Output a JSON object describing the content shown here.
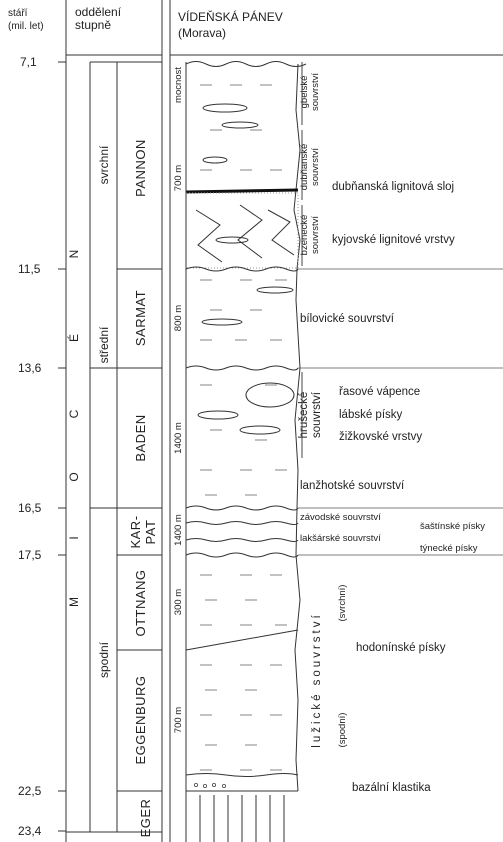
{
  "headers": {
    "age_line1": "stáří",
    "age_line2": "(mil. let)",
    "division_line1": "oddělení",
    "division_line2": "stupně",
    "basin_title": "VÍDEŇSKÁ PÁNEV",
    "basin_subtitle": "(Morava)"
  },
  "ages": [
    "7,1",
    "11,5",
    "13,6",
    "16,5",
    "17,5",
    "22,5",
    "23,4"
  ],
  "epoch_letters": [
    "N",
    "É",
    "C",
    "O",
    "I",
    "M"
  ],
  "subepochs": [
    "svrchní",
    "střední",
    "spodní"
  ],
  "stages": [
    "PANNON",
    "SARMAT",
    "BADEN",
    "KAR-",
    "PAT",
    "OTTNANG",
    "EGGENBURG",
    "EGER"
  ],
  "thicknesses": [
    "mocnost",
    "700 m",
    "800 m",
    "1400 m",
    "1400 m",
    "300 m",
    "700 m"
  ],
  "formations": {
    "gbelske": [
      "gbelské",
      "souvrství"
    ],
    "dubnanske": [
      "dubňanské",
      "souvrství"
    ],
    "bzenecke": [
      "bzenecké",
      "souvrství"
    ],
    "hrusecke": [
      "hrušecké",
      "souvrství"
    ],
    "luzicke_svrchni": "(svrchní)",
    "luzicke": "lužické souvrství",
    "luzicke_spodni": "(spodní)"
  },
  "labels": {
    "dubnanska_sloj": "dubňanská lignitová sloj",
    "kyjovske": "kyjovské lignitové vrstvy",
    "bilovicke": "bílovické souvrství",
    "rasove": "řasové vápence",
    "labske": "lábské písky",
    "zizkovske": "žižkovské vrstvy",
    "lanzhotske": "lanžhotské souvrství",
    "zavodske": "závodské souvrství",
    "saštinske": "šaštínské písky",
    "laksarske": "lakšárské souvrství",
    "tynecke": "týnecké písky",
    "hodoninske": "hodonínské písky",
    "bazalni": "bazální klastika"
  }
}
